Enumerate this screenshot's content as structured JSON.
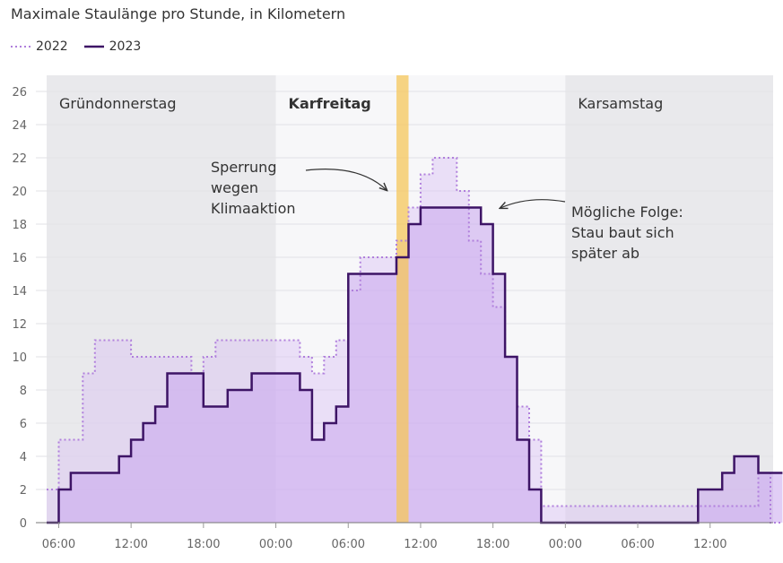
{
  "chart_data": {
    "type": "line",
    "title": "Maximale Staulänge pro Stunde, in Kilometern",
    "xlabel": "",
    "ylabel": "",
    "ylim": [
      0,
      27
    ],
    "yticks": [
      0,
      2,
      4,
      6,
      8,
      10,
      12,
      14,
      16,
      18,
      20,
      22,
      24,
      26
    ],
    "xlim": [
      5,
      65.5
    ],
    "xticks": [
      {
        "hour": 6,
        "label": "06:00"
      },
      {
        "hour": 12,
        "label": "12:00"
      },
      {
        "hour": 18,
        "label": "18:00"
      },
      {
        "hour": 24,
        "label": "00:00"
      },
      {
        "hour": 30,
        "label": "06:00"
      },
      {
        "hour": 36,
        "label": "12:00"
      },
      {
        "hour": 42,
        "label": "18:00"
      },
      {
        "hour": 48,
        "label": "00:00"
      },
      {
        "hour": 54,
        "label": "06:00"
      },
      {
        "hour": 60,
        "label": "12:00"
      }
    ],
    "days": [
      {
        "label": "Gründonnerstag",
        "start": 5,
        "end": 24,
        "shade": "#e9e9ec",
        "bold": false
      },
      {
        "label": "Karfreitag",
        "start": 24,
        "end": 48,
        "shade": "#f7f7f9",
        "bold": true
      },
      {
        "label": "Karsamstag",
        "start": 48,
        "end": 65.5,
        "shade": "#e9e9ec",
        "bold": false
      }
    ],
    "highlight": {
      "start": 34,
      "end": 35,
      "color": "#f5c75a"
    },
    "series": [
      {
        "name": "2022",
        "style": "dotted",
        "color": "#b07fdc",
        "x": [
          5,
          6,
          7,
          8,
          9,
          10,
          11,
          12,
          13,
          14,
          15,
          16,
          17,
          18,
          19,
          20,
          21,
          22,
          23,
          24,
          25,
          26,
          27,
          28,
          29,
          30,
          31,
          32,
          33,
          34,
          35,
          36,
          37,
          38,
          39,
          40,
          41,
          42,
          43,
          44,
          45,
          46,
          47,
          48,
          49,
          50,
          51,
          52,
          53,
          54,
          55,
          56,
          57,
          58,
          59,
          60,
          61,
          62,
          63,
          64,
          65
        ],
        "values": [
          2,
          5,
          5,
          9,
          11,
          11,
          11,
          10,
          10,
          10,
          10,
          10,
          9,
          10,
          11,
          11,
          11,
          11,
          11,
          11,
          11,
          10,
          9,
          10,
          11,
          14,
          16,
          16,
          16,
          17,
          19,
          21,
          22,
          22,
          20,
          17,
          15,
          13,
          10,
          7,
          5,
          1,
          1,
          1,
          1,
          1,
          1,
          1,
          1,
          1,
          1,
          1,
          1,
          1,
          1,
          1,
          1,
          1,
          1,
          3,
          0
        ]
      },
      {
        "name": "2023",
        "style": "solid",
        "color": "#3d1466",
        "x": [
          5,
          6,
          7,
          8,
          9,
          10,
          11,
          12,
          13,
          14,
          15,
          16,
          17,
          18,
          19,
          20,
          21,
          22,
          23,
          24,
          25,
          26,
          27,
          28,
          29,
          30,
          31,
          32,
          33,
          34,
          35,
          36,
          37,
          38,
          39,
          40,
          41,
          42,
          43,
          44,
          45,
          46,
          47,
          48,
          49,
          50,
          51,
          52,
          53,
          54,
          55,
          56,
          57,
          58,
          59,
          60,
          61,
          62,
          63,
          64,
          65
        ],
        "values": [
          0,
          2,
          3,
          3,
          3,
          3,
          4,
          5,
          6,
          7,
          9,
          9,
          9,
          7,
          7,
          8,
          8,
          9,
          9,
          9,
          9,
          8,
          5,
          6,
          7,
          15,
          15,
          15,
          15,
          16,
          18,
          19,
          19,
          19,
          19,
          19,
          18,
          15,
          10,
          5,
          2,
          0,
          0,
          0,
          0,
          0,
          0,
          0,
          0,
          0,
          0,
          0,
          0,
          0,
          2,
          2,
          3,
          4,
          4,
          3,
          3
        ]
      }
    ],
    "annotations": [
      {
        "lines": [
          "Sperrung",
          "wegen",
          "Klimaaktion"
        ]
      },
      {
        "lines": [
          "Mögliche Folge:",
          "Stau baut sich",
          "später ab"
        ]
      }
    ]
  },
  "colors": {
    "grid": "#e2e2e6",
    "area2022": "#d9c1f4",
    "area2023": "#c9a6ee",
    "axis": "#999999"
  }
}
